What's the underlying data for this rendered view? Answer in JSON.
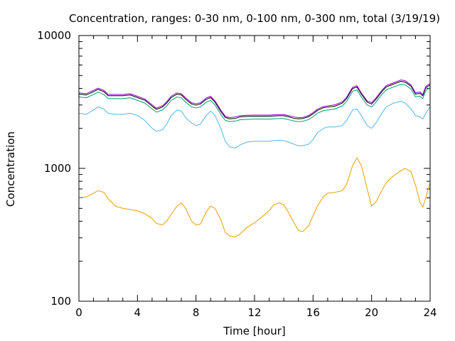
{
  "chart_data": {
    "type": "line",
    "title": "Concentration, ranges: 0-30 nm, 0-100 nm, 0-300 nm, total (3/19/19)",
    "xlabel": "Time [hour]",
    "ylabel": "Concentration",
    "xlim": [
      0,
      24
    ],
    "ylim": [
      100,
      10000
    ],
    "yscale": "log",
    "grid": false,
    "legend": "none",
    "xticks": [
      "0",
      "4",
      "8",
      "12",
      "16",
      "20",
      "24"
    ],
    "yticks": [
      "100",
      "1000",
      "10000"
    ],
    "series": [
      {
        "color": "#e69f00",
        "x": [
          0,
          0.5,
          1,
          1.3,
          1.7,
          2,
          2.5,
          3,
          3.5,
          4,
          4.5,
          5,
          5.3,
          5.7,
          6,
          6.3,
          6.7,
          7,
          7.3,
          7.7,
          8,
          8.3,
          8.7,
          9,
          9.3,
          9.7,
          10,
          10.3,
          10.7,
          11,
          11.5,
          12,
          12.5,
          13,
          13.3,
          13.7,
          14,
          14.3,
          14.7,
          15,
          15.3,
          15.7,
          16,
          16.3,
          16.7,
          17,
          17.5,
          18,
          18.3,
          18.7,
          19,
          19.3,
          19.7,
          20,
          20.3,
          20.7,
          21,
          21.5,
          22,
          22.3,
          22.7,
          23,
          23.3,
          23.5,
          23.7,
          24
        ],
        "values": [
          600,
          610,
          650,
          680,
          660,
          590,
          520,
          500,
          490,
          480,
          455,
          420,
          385,
          375,
          400,
          450,
          520,
          550,
          500,
          400,
          375,
          380,
          470,
          520,
          500,
          410,
          330,
          310,
          305,
          320,
          360,
          390,
          430,
          480,
          530,
          550,
          530,
          470,
          390,
          340,
          335,
          370,
          440,
          520,
          610,
          650,
          660,
          680,
          760,
          1050,
          1200,
          1050,
          700,
          520,
          560,
          680,
          780,
          880,
          960,
          1000,
          940,
          750,
          560,
          510,
          600,
          780
        ]
      },
      {
        "color": "#56b4e9",
        "x": [
          0,
          0.5,
          1,
          1.3,
          1.7,
          2,
          2.5,
          3,
          3.5,
          4,
          4.5,
          5,
          5.3,
          5.7,
          6,
          6.3,
          6.7,
          7,
          7.3,
          7.7,
          8,
          8.3,
          8.7,
          9,
          9.3,
          9.7,
          10,
          10.3,
          10.7,
          11,
          11.5,
          12,
          12.5,
          13,
          13.3,
          13.7,
          14,
          14.3,
          14.7,
          15,
          15.3,
          15.7,
          16,
          16.3,
          16.7,
          17,
          17.5,
          18,
          18.3,
          18.7,
          19,
          19.3,
          19.7,
          20,
          20.3,
          20.7,
          21,
          21.5,
          22,
          22.3,
          22.7,
          23,
          23.3,
          23.5,
          23.7,
          24
        ],
        "values": [
          2600,
          2550,
          2750,
          2900,
          2800,
          2600,
          2550,
          2550,
          2600,
          2500,
          2300,
          2000,
          1900,
          1950,
          2150,
          2500,
          2750,
          2700,
          2400,
          2200,
          2100,
          2150,
          2500,
          2700,
          2500,
          2000,
          1600,
          1450,
          1420,
          1500,
          1580,
          1600,
          1600,
          1600,
          1620,
          1630,
          1620,
          1580,
          1520,
          1480,
          1480,
          1520,
          1650,
          1850,
          2000,
          2050,
          2050,
          2100,
          2300,
          2750,
          2800,
          2500,
          2100,
          2000,
          2200,
          2600,
          2900,
          3100,
          3200,
          3100,
          2800,
          2500,
          2450,
          2350,
          2600,
          2900
        ]
      },
      {
        "color": "#009e73",
        "x": [
          0,
          0.5,
          1,
          1.3,
          1.7,
          2,
          2.5,
          3,
          3.5,
          4,
          4.5,
          5,
          5.3,
          5.7,
          6,
          6.3,
          6.7,
          7,
          7.3,
          7.7,
          8,
          8.3,
          8.7,
          9,
          9.3,
          9.7,
          10,
          10.3,
          10.7,
          11,
          11.5,
          12,
          12.5,
          13,
          13.3,
          13.7,
          14,
          14.3,
          14.7,
          15,
          15.3,
          15.7,
          16,
          16.3,
          16.7,
          17,
          17.5,
          18,
          18.3,
          18.7,
          19,
          19.3,
          19.7,
          20,
          20.3,
          20.7,
          21,
          21.5,
          22,
          22.3,
          22.7,
          23,
          23.3,
          23.5,
          23.7,
          24
        ],
        "values": [
          3450,
          3400,
          3600,
          3750,
          3600,
          3350,
          3350,
          3350,
          3400,
          3250,
          3100,
          2800,
          2650,
          2750,
          2950,
          3250,
          3450,
          3400,
          3150,
          2900,
          2850,
          2900,
          3150,
          3250,
          3000,
          2550,
          2300,
          2250,
          2270,
          2320,
          2340,
          2350,
          2350,
          2350,
          2360,
          2370,
          2370,
          2330,
          2270,
          2250,
          2260,
          2330,
          2450,
          2600,
          2720,
          2750,
          2800,
          2950,
          3200,
          3800,
          3900,
          3450,
          3000,
          2900,
          3150,
          3600,
          3900,
          4100,
          4300,
          4250,
          3950,
          3450,
          3500,
          3350,
          3850,
          4050
        ]
      },
      {
        "color": "#000000",
        "x": [
          0,
          0.5,
          1,
          1.3,
          1.7,
          2,
          2.5,
          3,
          3.5,
          4,
          4.5,
          5,
          5.3,
          5.7,
          6,
          6.3,
          6.7,
          7,
          7.3,
          7.7,
          8,
          8.3,
          8.7,
          9,
          9.3,
          9.7,
          10,
          10.3,
          10.7,
          11,
          11.5,
          12,
          12.5,
          13,
          13.3,
          13.7,
          14,
          14.3,
          14.7,
          15,
          15.3,
          15.7,
          16,
          16.3,
          16.7,
          17,
          17.5,
          18,
          18.3,
          18.7,
          19,
          19.3,
          19.7,
          20,
          20.3,
          20.7,
          21,
          21.5,
          22,
          22.3,
          22.7,
          23,
          23.3,
          23.5,
          23.7,
          24
        ],
        "values": [
          3620,
          3570,
          3780,
          3930,
          3780,
          3520,
          3520,
          3520,
          3570,
          3410,
          3260,
          2940,
          2780,
          2890,
          3100,
          3410,
          3620,
          3570,
          3310,
          3050,
          2990,
          3050,
          3310,
          3410,
          3150,
          2680,
          2420,
          2360,
          2380,
          2440,
          2460,
          2470,
          2470,
          2470,
          2480,
          2490,
          2490,
          2450,
          2380,
          2360,
          2370,
          2450,
          2570,
          2730,
          2860,
          2890,
          2940,
          3100,
          3360,
          3990,
          4100,
          3620,
          3150,
          3050,
          3310,
          3780,
          4100,
          4310,
          4520,
          4460,
          4150,
          3620,
          3680,
          3520,
          4040,
          4250
        ]
      },
      {
        "color": "#9400d3",
        "x": [
          0,
          0.5,
          1,
          1.3,
          1.7,
          2,
          2.5,
          3,
          3.5,
          4,
          4.5,
          5,
          5.3,
          5.7,
          6,
          6.3,
          6.7,
          7,
          7.3,
          7.7,
          8,
          8.3,
          8.7,
          9,
          9.3,
          9.7,
          10,
          10.3,
          10.7,
          11,
          11.5,
          12,
          12.5,
          13,
          13.3,
          13.7,
          14,
          14.3,
          14.7,
          15,
          15.3,
          15.7,
          16,
          16.3,
          16.7,
          17,
          17.5,
          18,
          18.3,
          18.7,
          19,
          19.3,
          19.7,
          20,
          20.3,
          20.7,
          21,
          21.5,
          22,
          22.3,
          22.7,
          23,
          23.3,
          23.5,
          23.7,
          24
        ],
        "values": [
          3700,
          3650,
          3870,
          4020,
          3870,
          3600,
          3600,
          3600,
          3650,
          3490,
          3330,
          3010,
          2840,
          2950,
          3170,
          3490,
          3700,
          3650,
          3390,
          3120,
          3060,
          3120,
          3390,
          3490,
          3220,
          2740,
          2470,
          2410,
          2440,
          2490,
          2510,
          2520,
          2520,
          2520,
          2530,
          2540,
          2540,
          2500,
          2440,
          2410,
          2420,
          2500,
          2630,
          2790,
          2920,
          2950,
          3010,
          3170,
          3440,
          4080,
          4190,
          3700,
          3220,
          3120,
          3390,
          3870,
          4190,
          4410,
          4630,
          4570,
          4240,
          3700,
          3760,
          3600,
          4130,
          4350
        ]
      }
    ]
  }
}
